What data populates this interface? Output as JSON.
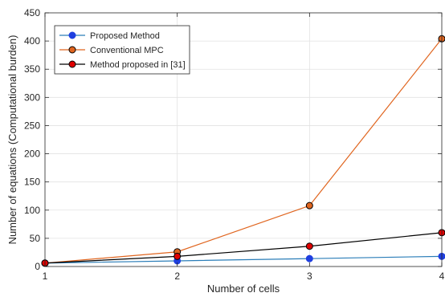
{
  "chart_data": {
    "type": "line",
    "title": "",
    "xlabel": "Number of cells",
    "ylabel": "Number of equations (Computational burden)",
    "x": [
      1,
      2,
      3,
      4
    ],
    "xlim": [
      1,
      4
    ],
    "ylim": [
      0,
      450
    ],
    "xticks": [
      "1",
      "2",
      "3",
      "4"
    ],
    "yticks": [
      "0",
      "50",
      "100",
      "150",
      "200",
      "250",
      "300",
      "350",
      "400",
      "450"
    ],
    "grid": true,
    "legend_position": "top-left",
    "series": [
      {
        "name": "Proposed Method",
        "values": [
          6,
          10,
          14,
          18
        ],
        "line_color": "#2a7db8",
        "marker_fill": "#1f3fe0",
        "marker_edge": "#1f3fe0"
      },
      {
        "name": "Conventional MPC",
        "values": [
          6,
          26,
          108,
          404
        ],
        "line_color": "#e0651f",
        "marker_fill": "#e0651f",
        "marker_edge": "#000000"
      },
      {
        "name": "Method proposed in [31]",
        "values": [
          6,
          18,
          36,
          60
        ],
        "line_color": "#000000",
        "marker_fill": "#e00000",
        "marker_edge": "#000000"
      }
    ]
  }
}
